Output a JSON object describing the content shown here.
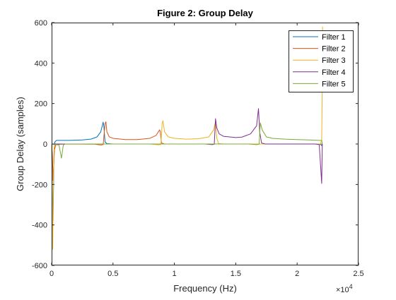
{
  "chart_data": {
    "type": "line",
    "title": "Figure 2: Group Delay",
    "xlabel": "Frequency (Hz)",
    "ylabel": "Group Delay (samples)",
    "x_exponent_label": "×10",
    "x_exponent_power": "4",
    "xlim": [
      0,
      25000
    ],
    "ylim": [
      -600,
      600
    ],
    "x_tick_values": [
      0,
      5000,
      10000,
      15000,
      20000,
      25000
    ],
    "x_tick_labels": [
      "0",
      "0.5",
      "1",
      "1.5",
      "2",
      "2.5"
    ],
    "y_tick_values": [
      600,
      400,
      200,
      0,
      -200,
      -400,
      -600
    ],
    "y_tick_labels": [
      "600",
      "400",
      "200",
      "0",
      "-200",
      "-400",
      "-600"
    ],
    "grid": false,
    "legend_position": "top-right",
    "series": [
      {
        "name": "Filter 1",
        "color": "#0072BD",
        "points": [
          [
            0,
            0
          ],
          [
            80,
            -300
          ],
          [
            120,
            -380
          ],
          [
            180,
            -100
          ],
          [
            260,
            10
          ],
          [
            400,
            18
          ],
          [
            800,
            18
          ],
          [
            1500,
            18
          ],
          [
            2500,
            20
          ],
          [
            3200,
            24
          ],
          [
            3700,
            35
          ],
          [
            4000,
            60
          ],
          [
            4200,
            108
          ],
          [
            4260,
            85
          ],
          [
            4350,
            10
          ],
          [
            4500,
            2
          ],
          [
            5000,
            0
          ],
          [
            10000,
            0
          ],
          [
            15000,
            0
          ],
          [
            20000,
            0
          ],
          [
            21500,
            0
          ],
          [
            21900,
            -2
          ],
          [
            22000,
            -8
          ],
          [
            22050,
            0
          ]
        ]
      },
      {
        "name": "Filter 2",
        "color": "#D95319",
        "points": [
          [
            0,
            0
          ],
          [
            60,
            -50
          ],
          [
            120,
            -180
          ],
          [
            220,
            -30
          ],
          [
            350,
            -2
          ],
          [
            1000,
            0
          ],
          [
            3500,
            -1
          ],
          [
            4000,
            -5
          ],
          [
            4200,
            -3
          ],
          [
            4350,
            100
          ],
          [
            4420,
            110
          ],
          [
            4500,
            60
          ],
          [
            4700,
            35
          ],
          [
            5000,
            28
          ],
          [
            6000,
            22
          ],
          [
            7000,
            22
          ],
          [
            8000,
            28
          ],
          [
            8500,
            42
          ],
          [
            8800,
            70
          ],
          [
            8850,
            60
          ],
          [
            8950,
            5
          ],
          [
            9200,
            0
          ],
          [
            15000,
            0
          ],
          [
            20000,
            0
          ],
          [
            22050,
            0
          ]
        ]
      },
      {
        "name": "Filter 3",
        "color": "#EDB120",
        "points": [
          [
            0,
            0
          ],
          [
            50,
            -200
          ],
          [
            90,
            -520
          ],
          [
            130,
            -250
          ],
          [
            200,
            -20
          ],
          [
            300,
            0
          ],
          [
            8000,
            0
          ],
          [
            8700,
            -4
          ],
          [
            8900,
            -2
          ],
          [
            9000,
            100
          ],
          [
            9070,
            115
          ],
          [
            9200,
            60
          ],
          [
            9500,
            35
          ],
          [
            10000,
            28
          ],
          [
            11000,
            24
          ],
          [
            12000,
            26
          ],
          [
            12800,
            35
          ],
          [
            13200,
            70
          ],
          [
            13350,
            110
          ],
          [
            13450,
            30
          ],
          [
            13600,
            2
          ],
          [
            14000,
            0
          ],
          [
            20000,
            0
          ],
          [
            21900,
            0
          ],
          [
            22000,
            20
          ],
          [
            22050,
            300
          ],
          [
            22070,
            580
          ]
        ]
      },
      {
        "name": "Filter 4",
        "color": "#7E2F8E",
        "points": [
          [
            0,
            0
          ],
          [
            3000,
            0
          ],
          [
            12500,
            0
          ],
          [
            13100,
            -3
          ],
          [
            13250,
            -1
          ],
          [
            13350,
            125
          ],
          [
            13450,
            80
          ],
          [
            13650,
            50
          ],
          [
            14000,
            38
          ],
          [
            15000,
            32
          ],
          [
            15500,
            34
          ],
          [
            16200,
            50
          ],
          [
            16700,
            90
          ],
          [
            16850,
            175
          ],
          [
            16950,
            60
          ],
          [
            17100,
            5
          ],
          [
            17400,
            0
          ],
          [
            20000,
            0
          ],
          [
            21500,
            0
          ],
          [
            21800,
            -3
          ],
          [
            22000,
            -195
          ],
          [
            22050,
            0
          ]
        ]
      },
      {
        "name": "Filter 5",
        "color": "#77AC30",
        "points": [
          [
            0,
            0
          ],
          [
            600,
            -5
          ],
          [
            800,
            -70
          ],
          [
            850,
            -50
          ],
          [
            950,
            -5
          ],
          [
            1100,
            0
          ],
          [
            2000,
            0
          ],
          [
            10000,
            0
          ],
          [
            16000,
            0
          ],
          [
            16700,
            -3
          ],
          [
            16900,
            -1
          ],
          [
            17000,
            105
          ],
          [
            17150,
            70
          ],
          [
            17500,
            35
          ],
          [
            18000,
            28
          ],
          [
            19000,
            24
          ],
          [
            20000,
            22
          ],
          [
            21000,
            20
          ],
          [
            21800,
            18
          ],
          [
            22000,
            18
          ],
          [
            22050,
            0
          ]
        ]
      }
    ]
  }
}
